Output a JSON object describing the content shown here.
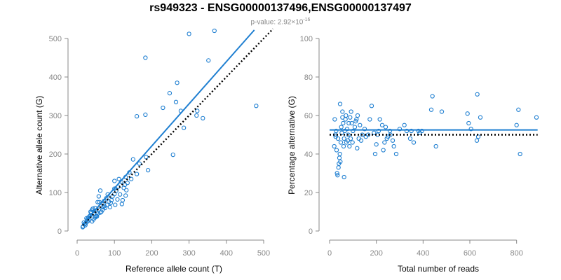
{
  "header": {
    "title": "rs949323 - ENSG00000137496,ENSG00000137497",
    "pvalue_prefix": "p-value: ",
    "pvalue_mantissa": "2.92×10",
    "pvalue_exponent": "-16"
  },
  "chart_data": [
    {
      "type": "scatter",
      "xlabel": "Reference allele count (T)",
      "ylabel": "Alternative allele count (G)",
      "xlim": [
        0,
        500
      ],
      "ylim": [
        0,
        500
      ],
      "xticks": [
        0,
        100,
        200,
        300,
        400,
        500
      ],
      "yticks": [
        0,
        100,
        200,
        300,
        400,
        500
      ],
      "grid": false,
      "colors": {
        "points": "#1f7fd1",
        "fit_line": "#1f7fd1",
        "reference_line": "#000000"
      },
      "fit_line": {
        "x": [
          15,
          475
        ],
        "y": [
          18,
          522
        ]
      },
      "reference_line": {
        "x": [
          15,
          525
        ],
        "y": [
          15,
          525
        ]
      },
      "points": [
        [
          300,
          512
        ],
        [
          368,
          520
        ],
        [
          183,
          450
        ],
        [
          352,
          443
        ],
        [
          268,
          385
        ],
        [
          248,
          358
        ],
        [
          278,
          312
        ],
        [
          160,
          298
        ],
        [
          183,
          302
        ],
        [
          337,
          293
        ],
        [
          480,
          325
        ],
        [
          322,
          312
        ],
        [
          320,
          300
        ],
        [
          230,
          320
        ],
        [
          265,
          335
        ],
        [
          286,
          268
        ],
        [
          257,
          198
        ],
        [
          185,
          192
        ],
        [
          190,
          158
        ],
        [
          167,
          175
        ],
        [
          160,
          148
        ],
        [
          140,
          152
        ],
        [
          150,
          186
        ],
        [
          130,
          140
        ],
        [
          132,
          106
        ],
        [
          130,
          92
        ],
        [
          122,
          80
        ],
        [
          128,
          120
        ],
        [
          118,
          128
        ],
        [
          110,
          115
        ],
        [
          105,
          105
        ],
        [
          100,
          96
        ],
        [
          95,
          90
        ],
        [
          92,
          80
        ],
        [
          90,
          73
        ],
        [
          85,
          76
        ],
        [
          80,
          68
        ],
        [
          78,
          85
        ],
        [
          75,
          60
        ],
        [
          72,
          78
        ],
        [
          70,
          62
        ],
        [
          68,
          55
        ],
        [
          65,
          50
        ],
        [
          62,
          48
        ],
        [
          60,
          75
        ],
        [
          58,
          55
        ],
        [
          55,
          45
        ],
        [
          52,
          40
        ],
        [
          50,
          38
        ],
        [
          48,
          60
        ],
        [
          46,
          52
        ],
        [
          45,
          45
        ],
        [
          44,
          30
        ],
        [
          42,
          58
        ],
        [
          40,
          55
        ],
        [
          38,
          48
        ],
        [
          36,
          50
        ],
        [
          35,
          40
        ],
        [
          33,
          38
        ],
        [
          32,
          28
        ],
        [
          30,
          35
        ],
        [
          28,
          25
        ],
        [
          27,
          30
        ],
        [
          25,
          33
        ],
        [
          23,
          20
        ],
        [
          22,
          15
        ],
        [
          20,
          18
        ],
        [
          18,
          22
        ],
        [
          16,
          12
        ],
        [
          15,
          10
        ],
        [
          62,
          105
        ],
        [
          55,
          75
        ],
        [
          58,
          90
        ],
        [
          100,
          110
        ],
        [
          108,
          82
        ],
        [
          115,
          95
        ],
        [
          120,
          70
        ],
        [
          125,
          112
        ],
        [
          135,
          125
        ],
        [
          145,
          135
        ],
        [
          102,
          68
        ],
        [
          88,
          62
        ],
        [
          82,
          95
        ],
        [
          112,
          135
        ],
        [
          100,
          130
        ],
        [
          40,
          25
        ],
        [
          48,
          35
        ],
        [
          53,
          38
        ],
        [
          67,
          72
        ],
        [
          73,
          65
        ]
      ]
    },
    {
      "type": "scatter",
      "xlabel": "Total number of reads",
      "ylabel": "Percentage alternative (G)",
      "xlim": [
        0,
        900
      ],
      "ylim": [
        0,
        100
      ],
      "xticks": [
        0,
        200,
        400,
        600,
        800
      ],
      "yticks": [
        0,
        20,
        40,
        60,
        80,
        100
      ],
      "grid": false,
      "colors": {
        "points": "#1f7fd1",
        "fit_line": "#1f7fd1",
        "reference_line": "#000000"
      },
      "fit_line": {
        "x": [
          0,
          890
        ],
        "y": [
          52.5,
          52.5
        ]
      },
      "reference_line": {
        "x": [
          0,
          890
        ],
        "y": [
          50,
          50
        ]
      },
      "points": [
        [
          440,
          70
        ],
        [
          632,
          71
        ],
        [
          435,
          63
        ],
        [
          645,
          59
        ],
        [
          808,
          63
        ],
        [
          885,
          59
        ],
        [
          480,
          62
        ],
        [
          590,
          61
        ],
        [
          455,
          44
        ],
        [
          815,
          40
        ],
        [
          630,
          47
        ],
        [
          636,
          49
        ],
        [
          800,
          55
        ],
        [
          605,
          53
        ],
        [
          595,
          56
        ],
        [
          180,
          65
        ],
        [
          172,
          58
        ],
        [
          240,
          54
        ],
        [
          258,
          52
        ],
        [
          300,
          53
        ],
        [
          320,
          55
        ],
        [
          330,
          52
        ],
        [
          345,
          48
        ],
        [
          385,
          51
        ],
        [
          395,
          52
        ],
        [
          270,
          47
        ],
        [
          250,
          49
        ],
        [
          225,
          55
        ],
        [
          205,
          50
        ],
        [
          200,
          45
        ],
        [
          195,
          40
        ],
        [
          190,
          51
        ],
        [
          155,
          49
        ],
        [
          150,
          53
        ],
        [
          140,
          50
        ],
        [
          135,
          47
        ],
        [
          130,
          55
        ],
        [
          120,
          60
        ],
        [
          115,
          58
        ],
        [
          108,
          54
        ],
        [
          100,
          52
        ],
        [
          98,
          46
        ],
        [
          95,
          56
        ],
        [
          92,
          62
        ],
        [
          90,
          48
        ],
        [
          88,
          59
        ],
        [
          85,
          44
        ],
        [
          82,
          56
        ],
        [
          80,
          50
        ],
        [
          78,
          47
        ],
        [
          75,
          53
        ],
        [
          72,
          46
        ],
        [
          70,
          60
        ],
        [
          68,
          58
        ],
        [
          65,
          52
        ],
        [
          62,
          48
        ],
        [
          60,
          44
        ],
        [
          58,
          56
        ],
        [
          55,
          62
        ],
        [
          52,
          51
        ],
        [
          50,
          54
        ],
        [
          48,
          46
        ],
        [
          46,
          36
        ],
        [
          44,
          40
        ],
        [
          42,
          38
        ],
        [
          40,
          35
        ],
        [
          38,
          33
        ],
        [
          36,
          48
        ],
        [
          34,
          29
        ],
        [
          32,
          30
        ],
        [
          30,
          42
        ],
        [
          28,
          52
        ],
        [
          26,
          49
        ],
        [
          24,
          50
        ],
        [
          22,
          58
        ],
        [
          20,
          44
        ],
        [
          55,
          59
        ],
        [
          62,
          28
        ],
        [
          45,
          66
        ],
        [
          112,
          57
        ],
        [
          118,
          43
        ],
        [
          125,
          48
        ],
        [
          165,
          50
        ],
        [
          210,
          52
        ],
        [
          215,
          58
        ],
        [
          230,
          42
        ],
        [
          235,
          46
        ],
        [
          245,
          48
        ],
        [
          260,
          50
        ],
        [
          275,
          44
        ],
        [
          285,
          40
        ],
        [
          350,
          52
        ],
        [
          360,
          46
        ],
        [
          380,
          52
        ]
      ]
    }
  ]
}
